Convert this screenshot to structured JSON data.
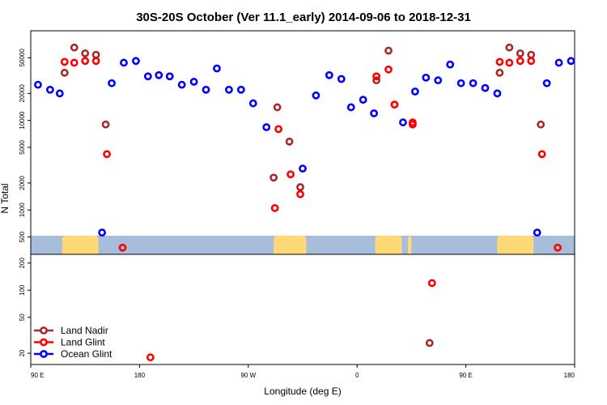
{
  "chart_data": {
    "type": "scatter",
    "title": "30S-20S October (Ver 11.1_early)   2014-09-06 to 2018-12-31",
    "xlabel": "Longitude (deg E)",
    "ylabel": "N Total",
    "x_ticks": [
      {
        "value": 90,
        "label": "90 E"
      },
      {
        "value": 180,
        "label": "180"
      },
      {
        "value": 270,
        "label": "90 W"
      },
      {
        "value": 360,
        "label": "0"
      },
      {
        "value": 450,
        "label": "90 E"
      },
      {
        "value": 540,
        "label": "180"
      }
    ],
    "xlim": [
      90,
      540
    ],
    "log_scale_y": true,
    "upper_panel": {
      "ylim": [
        320,
        100000
      ],
      "y_ticks": [
        500,
        1000,
        2000,
        5000,
        10000,
        20000,
        50000
      ]
    },
    "lower_panel": {
      "ylim": [
        15,
        250
      ],
      "y_ticks": [
        20,
        50,
        100,
        200
      ]
    },
    "legend": {
      "position": "bottom-left",
      "entries": [
        "Land Nadir",
        "Land Glint",
        "Ocean Glint"
      ]
    },
    "colors": {
      "Land Nadir": "#a52a2a",
      "Land Glint": "#ff0000",
      "Ocean Glint": "#0000ff",
      "ocean_band": "#a6bddb",
      "land_band": "#fed976"
    },
    "series": [
      {
        "name": "Land Nadir",
        "points": [
          {
            "x": 118,
            "y": 34000
          },
          {
            "x": 126,
            "y": 65000
          },
          {
            "x": 135,
            "y": 56000
          },
          {
            "x": 144,
            "y": 54000
          },
          {
            "x": 152,
            "y": 9000
          },
          {
            "x": 291,
            "y": 2300
          },
          {
            "x": 294,
            "y": 14000
          },
          {
            "x": 304,
            "y": 5800
          },
          {
            "x": 313,
            "y": 1800
          },
          {
            "x": 376,
            "y": 28000
          },
          {
            "x": 386,
            "y": 60000
          },
          {
            "x": 391,
            "y": 15000
          },
          {
            "x": 420,
            "y": 26
          },
          {
            "x": 478,
            "y": 34000
          },
          {
            "x": 486,
            "y": 65000
          },
          {
            "x": 495,
            "y": 56000
          },
          {
            "x": 504,
            "y": 54000
          },
          {
            "x": 512,
            "y": 9000
          }
        ]
      },
      {
        "name": "Land Glint",
        "points": [
          {
            "x": 118,
            "y": 45000
          },
          {
            "x": 126,
            "y": 44000
          },
          {
            "x": 135,
            "y": 46000
          },
          {
            "x": 144,
            "y": 46000
          },
          {
            "x": 153,
            "y": 4200
          },
          {
            "x": 166,
            "y": 380
          },
          {
            "x": 189,
            "y": 18
          },
          {
            "x": 292,
            "y": 1050
          },
          {
            "x": 295,
            "y": 8000
          },
          {
            "x": 305,
            "y": 2500
          },
          {
            "x": 313,
            "y": 1500
          },
          {
            "x": 376,
            "y": 31000
          },
          {
            "x": 386,
            "y": 37000
          },
          {
            "x": 391,
            "y": 15000
          },
          {
            "x": 406,
            "y": 9500
          },
          {
            "x": 406,
            "y": 9000
          },
          {
            "x": 422,
            "y": 120
          },
          {
            "x": 478,
            "y": 45000
          },
          {
            "x": 486,
            "y": 44000
          },
          {
            "x": 495,
            "y": 46000
          },
          {
            "x": 504,
            "y": 46000
          },
          {
            "x": 513,
            "y": 4200
          },
          {
            "x": 526,
            "y": 380
          }
        ]
      },
      {
        "name": "Ocean Glint",
        "points": [
          {
            "x": 96,
            "y": 25000
          },
          {
            "x": 106,
            "y": 22000
          },
          {
            "x": 114,
            "y": 20000
          },
          {
            "x": 149,
            "y": 560
          },
          {
            "x": 157,
            "y": 26000
          },
          {
            "x": 167,
            "y": 44000
          },
          {
            "x": 177,
            "y": 46000
          },
          {
            "x": 187,
            "y": 31000
          },
          {
            "x": 196,
            "y": 32000
          },
          {
            "x": 205,
            "y": 31000
          },
          {
            "x": 215,
            "y": 25000
          },
          {
            "x": 225,
            "y": 27000
          },
          {
            "x": 235,
            "y": 22000
          },
          {
            "x": 244,
            "y": 38000
          },
          {
            "x": 254,
            "y": 22000
          },
          {
            "x": 264,
            "y": 22000
          },
          {
            "x": 274,
            "y": 15500
          },
          {
            "x": 285,
            "y": 8400
          },
          {
            "x": 315,
            "y": 2900
          },
          {
            "x": 326,
            "y": 19000
          },
          {
            "x": 337,
            "y": 32000
          },
          {
            "x": 347,
            "y": 29000
          },
          {
            "x": 355,
            "y": 14000
          },
          {
            "x": 365,
            "y": 17000
          },
          {
            "x": 374,
            "y": 12000
          },
          {
            "x": 398,
            "y": 9500
          },
          {
            "x": 408,
            "y": 21000
          },
          {
            "x": 417,
            "y": 30000
          },
          {
            "x": 427,
            "y": 28000
          },
          {
            "x": 437,
            "y": 42000
          },
          {
            "x": 446,
            "y": 26000
          },
          {
            "x": 456,
            "y": 26000
          },
          {
            "x": 466,
            "y": 23000
          },
          {
            "x": 476,
            "y": 20000
          },
          {
            "x": 509,
            "y": 560
          },
          {
            "x": 517,
            "y": 26000
          },
          {
            "x": 527,
            "y": 44000
          },
          {
            "x": 537,
            "y": 46000
          }
        ]
      }
    ],
    "surface_band": {
      "land_segments": [
        [
          116,
          146
        ],
        [
          291,
          318
        ],
        [
          375,
          397
        ],
        [
          402,
          405
        ],
        [
          476,
          506
        ]
      ]
    }
  }
}
